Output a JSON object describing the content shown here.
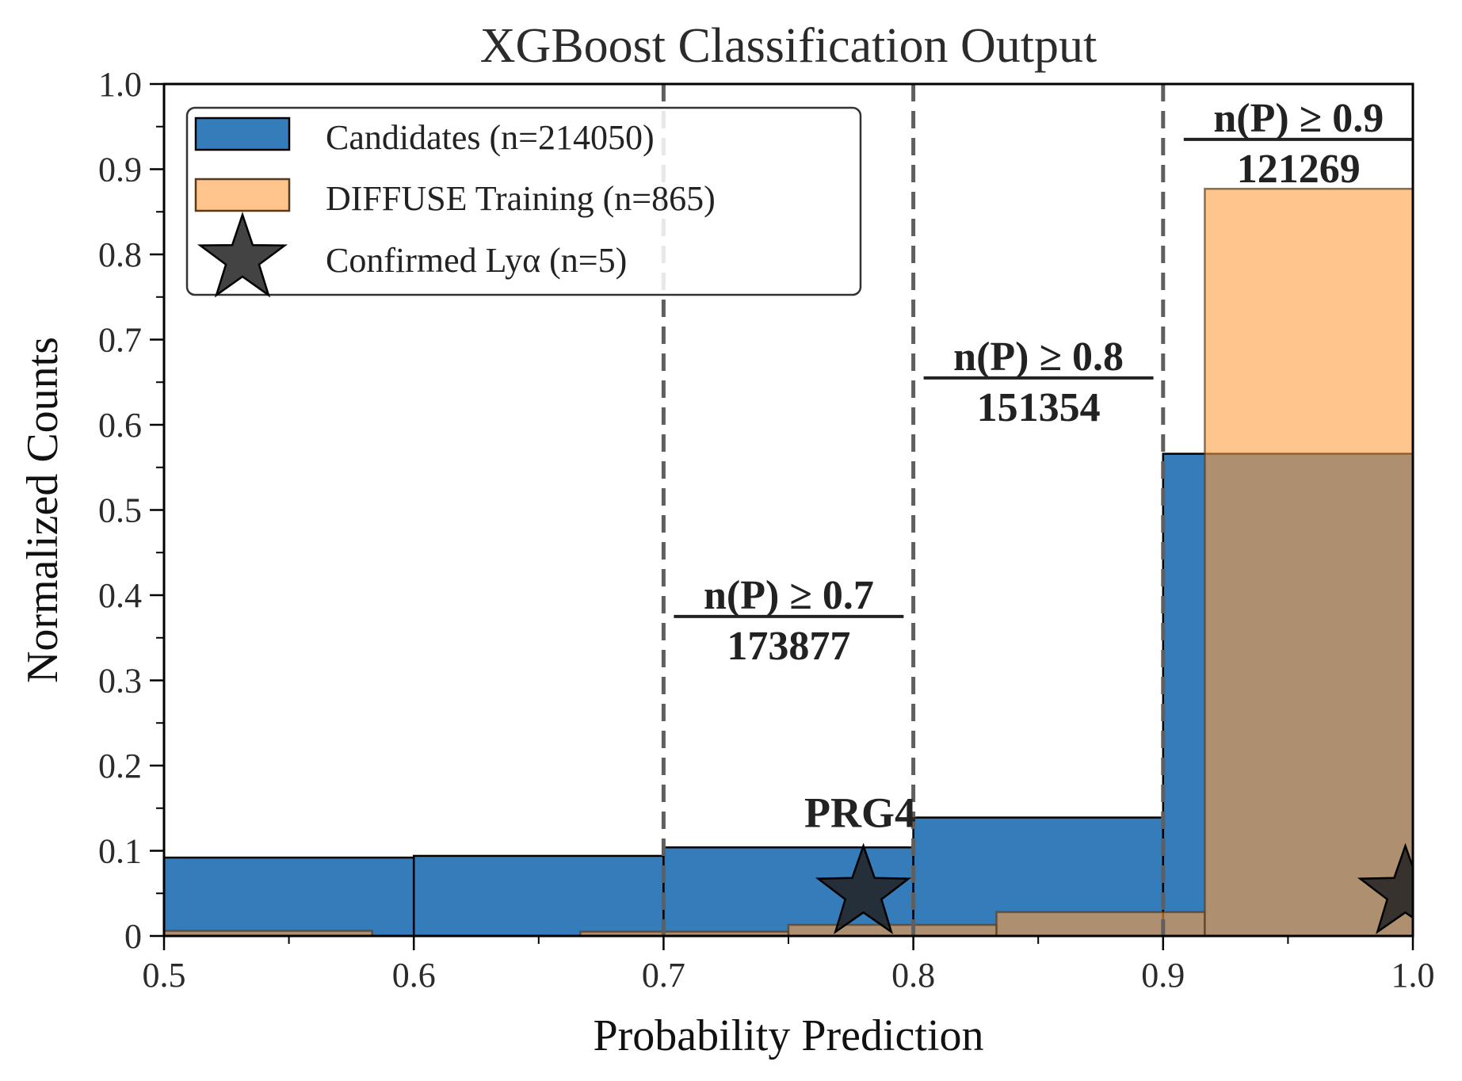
{
  "chart_data": {
    "type": "bar",
    "title": "XGBoost Classification Output",
    "xlabel": "Probability Prediction",
    "ylabel": "Normalized Counts",
    "xlim": [
      0.5,
      1.0
    ],
    "ylim": [
      0,
      1.0
    ],
    "xticks": [
      "0.5",
      "0.6",
      "0.7",
      "0.8",
      "0.9",
      "1.0"
    ],
    "yticks": [
      "0",
      "0.1",
      "0.2",
      "0.3",
      "0.4",
      "0.5",
      "0.6",
      "0.7",
      "0.8",
      "0.9",
      "1.0"
    ],
    "grid": false,
    "legend_position": "top-left",
    "series": [
      {
        "name": "Candidates (n=214050)",
        "color": "#1f6eb4",
        "bins": [
          {
            "x0": 0.5,
            "x1": 0.6,
            "value": 0.092
          },
          {
            "x0": 0.6,
            "x1": 0.7,
            "value": 0.094
          },
          {
            "x0": 0.7,
            "x1": 0.8,
            "value": 0.104
          },
          {
            "x0": 0.8,
            "x1": 0.9,
            "value": 0.139
          },
          {
            "x0": 0.9,
            "x1": 1.0,
            "value": 0.566
          }
        ]
      },
      {
        "name": "DIFFUSE Training (n=865)",
        "color": "#ff9f3f",
        "bins": [
          {
            "x0": 0.5,
            "x1": 0.5833,
            "value": 0.006
          },
          {
            "x0": 0.5833,
            "x1": 0.6667,
            "value": 0.0
          },
          {
            "x0": 0.6667,
            "x1": 0.75,
            "value": 0.005
          },
          {
            "x0": 0.75,
            "x1": 0.8333,
            "value": 0.013
          },
          {
            "x0": 0.8333,
            "x1": 0.9167,
            "value": 0.028
          },
          {
            "x0": 0.9167,
            "x1": 1.0,
            "value": 0.877
          }
        ]
      },
      {
        "name": "Confirmed Lyα (n=5)",
        "color": "#222222",
        "points": [
          {
            "x": 0.78,
            "y": 0.05,
            "label": "PRG4"
          },
          {
            "x": 0.997,
            "y": 0.05,
            "label": ""
          }
        ]
      }
    ],
    "thresholds": [
      {
        "x": 0.7,
        "top": "n(P) ≥ 0.7",
        "bottom": "173877",
        "y": 0.375
      },
      {
        "x": 0.8,
        "top": "n(P) ≥ 0.8",
        "bottom": "151354",
        "y": 0.655
      },
      {
        "x": 0.9,
        "top": "n(P) ≥ 0.9",
        "bottom": "121269",
        "y": 0.935
      }
    ]
  }
}
